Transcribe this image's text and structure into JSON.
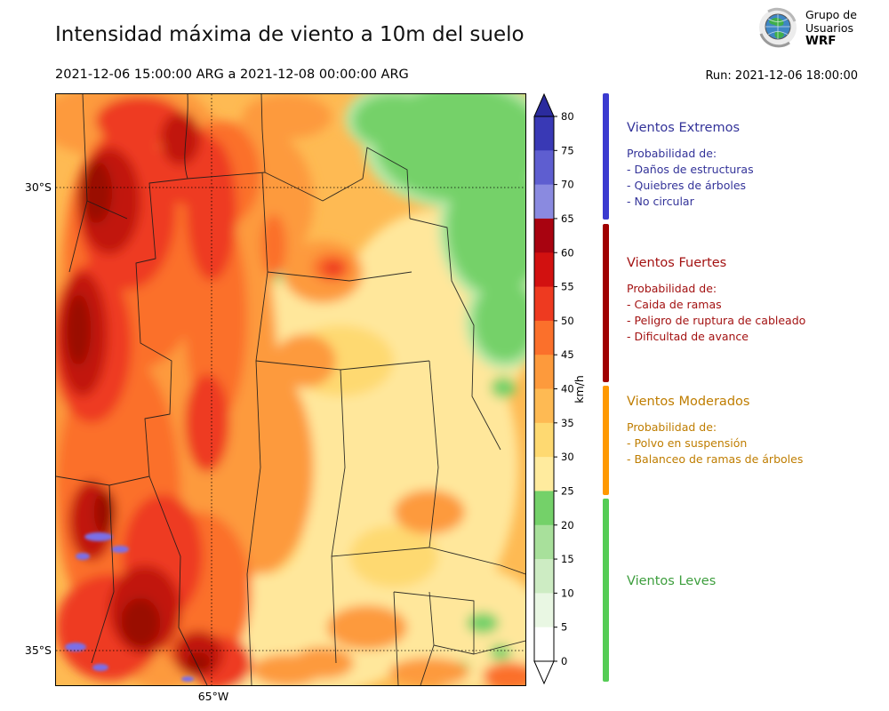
{
  "header": {
    "title": "Intensidad máxima de viento a 10m del suelo",
    "valid_range": "2021-12-06 15:00:00 ARG  a  2021-12-08 00:00:00 ARG",
    "run_label": "Run: 2021-12-06 18:00:00",
    "logo": {
      "line1": "Grupo de",
      "line2": "Usuarios",
      "line3": "WRF"
    }
  },
  "map_axes": {
    "lat_top": "30°S",
    "lat_bottom": "35°S",
    "lon": "65°W"
  },
  "colorbar": {
    "unit": "km/h",
    "tick_values": [
      "0",
      "5",
      "10",
      "15",
      "20",
      "25",
      "30",
      "35",
      "40",
      "45",
      "50",
      "55",
      "60",
      "65",
      "70",
      "75",
      "80"
    ],
    "segment_colors_bottom_up": [
      "#ffffff",
      "#e9f7e3",
      "#cdecc3",
      "#a8e09b",
      "#74d169",
      "#ffeb9e",
      "#fed971",
      "#feba53",
      "#fd9a3c",
      "#fb702b",
      "#ee3a20",
      "#d21110",
      "#a80310",
      "#8a8ae0",
      "#5e5ed0",
      "#3939b5"
    ],
    "arrow_top_color": "#2b2b9e",
    "arrow_bottom_color": "#ffffff"
  },
  "legend": {
    "sections": [
      {
        "title": "Vientos Extremos",
        "text_color": "#333399",
        "bar_color": "#3b3bd0",
        "lines": [
          "Probabilidad de:",
          "- Daños de estructuras",
          "- Quiebres de árboles",
          "- No circular"
        ]
      },
      {
        "title": "Vientos Fuertes",
        "text_color": "#a31212",
        "bar_color": "#a00000",
        "lines": [
          "Probabilidad de:",
          "- Caida de ramas",
          "- Peligro de ruptura de cableado",
          "- Dificultad de avance"
        ]
      },
      {
        "title": "Vientos Moderados",
        "text_color": "#bf7d00",
        "bar_color": "#ff9900",
        "lines": [
          "Probabilidad de:",
          "- Polvo en suspensión",
          "- Balanceo de ramas de árboles"
        ]
      },
      {
        "title": "Vientos Leves",
        "text_color": "#3d9e3d",
        "bar_color": "#55cc55",
        "lines": []
      }
    ]
  }
}
